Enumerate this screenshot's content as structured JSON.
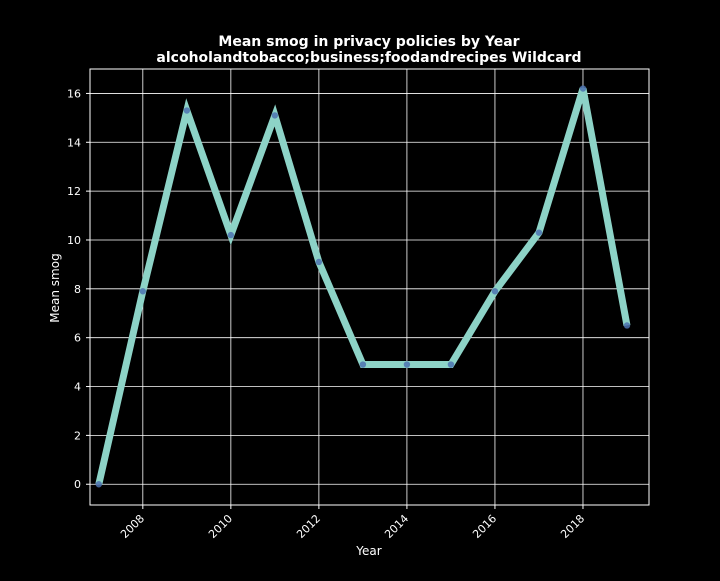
{
  "chart_data": {
    "type": "line",
    "title": "Mean smog in privacy policies by Year",
    "subtitle": "alcoholandtobacco;business;foodandrecipes Wildcard",
    "xlabel": "Year",
    "ylabel": "Mean smog",
    "xlim": [
      2006.8,
      2019.5
    ],
    "ylim": [
      -0.85,
      17.0
    ],
    "xticks": [
      2008,
      2010,
      2012,
      2014,
      2016,
      2018
    ],
    "yticks": [
      0,
      2,
      4,
      6,
      8,
      10,
      12,
      14,
      16
    ],
    "grid": true,
    "series": [
      {
        "x": [
          2007,
          2008,
          2009,
          2010,
          2011,
          2012,
          2013,
          2014,
          2015,
          2016,
          2017,
          2018,
          2019
        ],
        "y": [
          0.0,
          7.9,
          15.3,
          10.2,
          15.1,
          9.1,
          4.9,
          4.9,
          4.9,
          7.9,
          10.3,
          16.2,
          6.5
        ],
        "color": "#8dd3c7",
        "marker_color": "#4c72b0"
      }
    ]
  }
}
